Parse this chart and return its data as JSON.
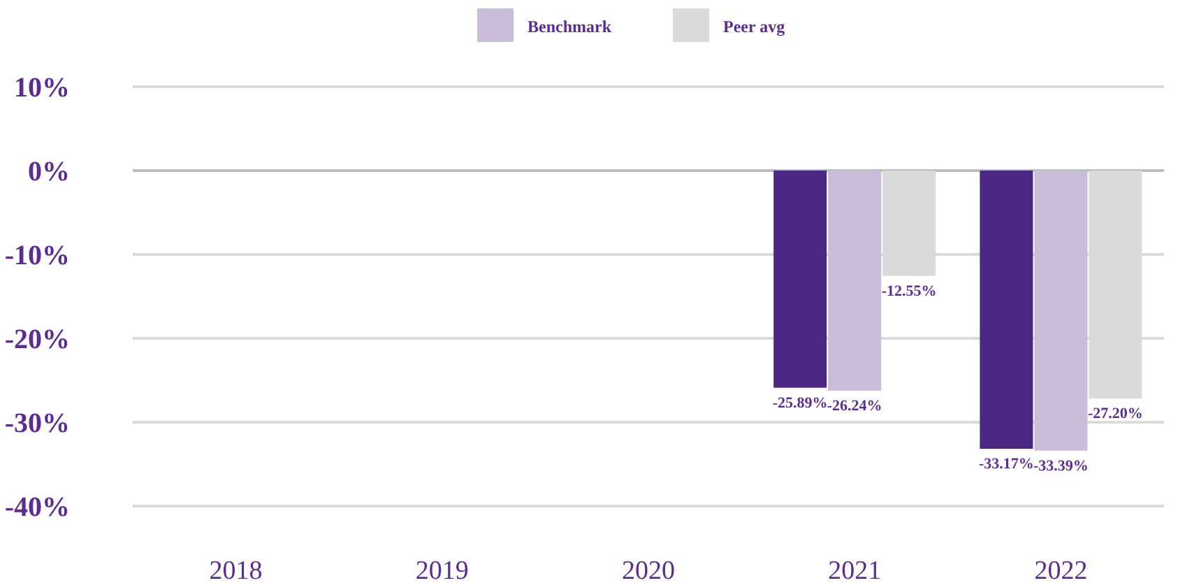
{
  "chart_data": {
    "type": "bar",
    "categories": [
      "2018",
      "2019",
      "2020",
      "2021",
      "2022"
    ],
    "series": [
      {
        "color": "#4b2882",
        "values": [
          null,
          null,
          null,
          -25.89,
          -33.17
        ],
        "value_labels": [
          null,
          null,
          null,
          "-25.89%",
          "-33.17%"
        ]
      },
      {
        "name": "Benchmark",
        "color": "#c9bdda",
        "values": [
          null,
          null,
          null,
          -26.24,
          -33.39
        ],
        "value_labels": [
          null,
          null,
          null,
          "-26.24%",
          "-33.39%"
        ]
      },
      {
        "name": "Peer avg",
        "color": "#dadada",
        "values": [
          null,
          null,
          null,
          -12.55,
          -27.2
        ],
        "value_labels": [
          null,
          null,
          null,
          "-12.55%",
          "-27.20%"
        ]
      }
    ],
    "ylim": [
      -40,
      10
    ],
    "yticks": [
      {
        "value": -40,
        "label": "-40%"
      },
      {
        "value": -30,
        "label": "-30%"
      },
      {
        "value": -20,
        "label": "-20%"
      },
      {
        "value": -10,
        "label": "-10%"
      },
      {
        "value": 0,
        "label": "0%"
      },
      {
        "value": 10,
        "label": "10%"
      }
    ],
    "grid": "y",
    "legend": "top"
  }
}
